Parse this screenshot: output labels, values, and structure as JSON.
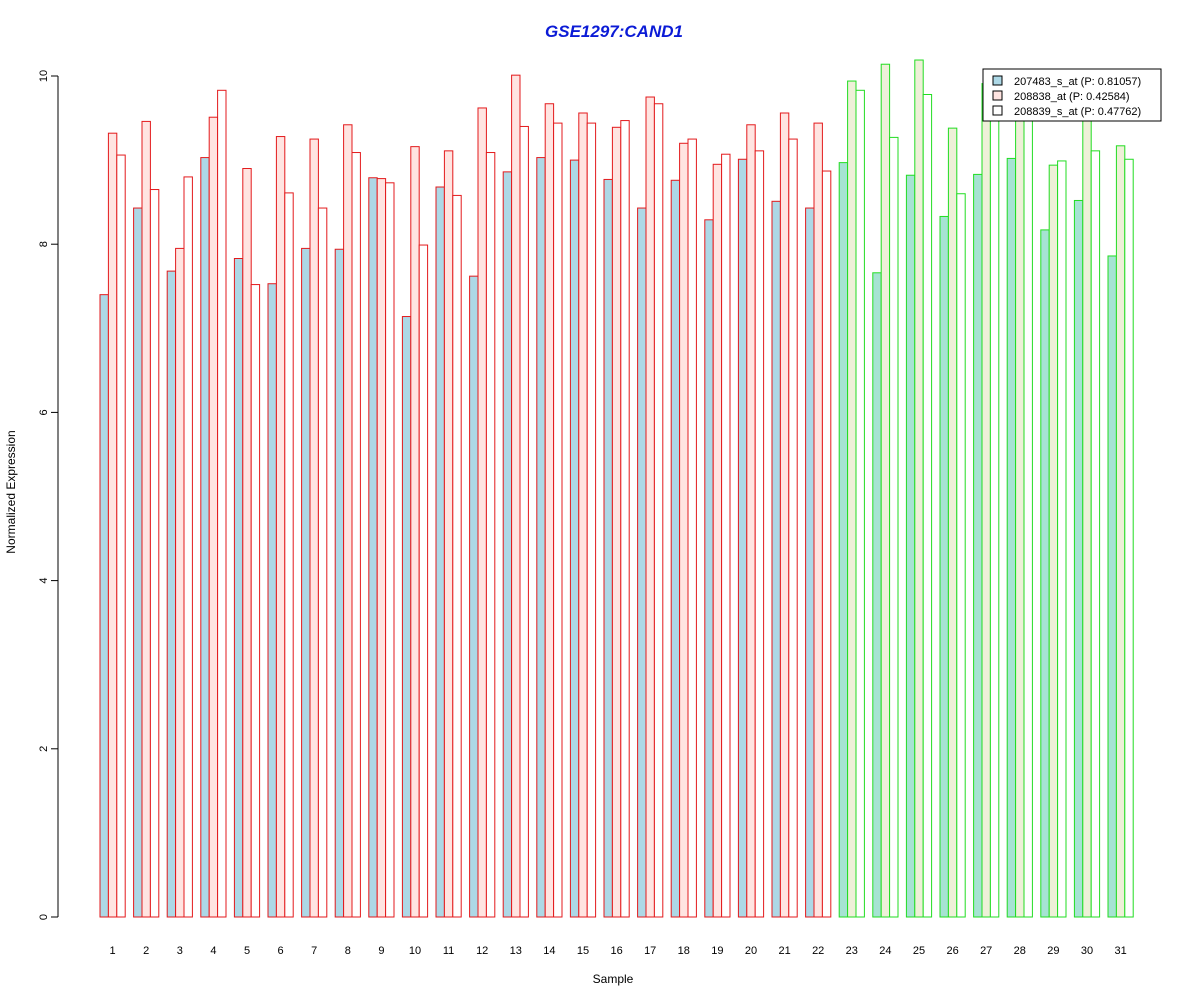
{
  "chart_data": {
    "type": "bar",
    "title": "GSE1297:CAND1",
    "xlabel": "Sample",
    "ylabel": "Normalized Expression",
    "ylim": [
      0,
      10
    ],
    "y_ticks": [
      "0",
      "2",
      "4",
      "6",
      "8",
      "10"
    ],
    "grid": false,
    "legend_position": "top-right",
    "categories": [
      "1",
      "2",
      "3",
      "4",
      "5",
      "6",
      "7",
      "8",
      "9",
      "10",
      "11",
      "12",
      "13",
      "14",
      "15",
      "16",
      "17",
      "18",
      "19",
      "20",
      "21",
      "22",
      "23",
      "24",
      "25",
      "26",
      "27",
      "28",
      "29",
      "30",
      "31"
    ],
    "groups": [
      {
        "samples": "1-22",
        "outline_color": "#e31a1c"
      },
      {
        "samples": "23-31",
        "outline_color": "#22dd22"
      }
    ],
    "series": [
      {
        "name": "207483_s_at (P: 0.81057)",
        "fill": "#add8e6",
        "fill_group2": "#a6e3d3",
        "values": [
          7.4,
          8.43,
          7.68,
          9.03,
          7.83,
          7.53,
          7.95,
          7.94,
          8.79,
          7.14,
          8.68,
          7.62,
          8.86,
          9.03,
          9.0,
          8.77,
          8.43,
          8.76,
          8.29,
          9.01,
          8.51,
          8.43,
          8.97,
          7.66,
          8.82,
          8.33,
          8.83,
          9.02,
          8.17,
          8.52,
          7.86
        ]
      },
      {
        "name": "208838_at (P: 0.42584)",
        "fill": "#ffe4e1",
        "fill_group2": "#eef0d8",
        "values": [
          9.32,
          9.46,
          7.95,
          9.51,
          8.9,
          9.28,
          9.25,
          9.42,
          8.78,
          9.16,
          9.11,
          9.62,
          10.01,
          9.67,
          9.56,
          9.39,
          9.75,
          9.2,
          8.95,
          9.42,
          9.56,
          9.44,
          9.94,
          10.14,
          10.19,
          9.38,
          9.91,
          9.62,
          8.94,
          9.62,
          9.17
        ]
      },
      {
        "name": "208839_s_at (P: 0.47762)",
        "fill": "#ffffff",
        "fill_group2": "#ffffff",
        "values": [
          9.06,
          8.65,
          8.8,
          9.83,
          7.52,
          8.61,
          8.43,
          9.09,
          8.73,
          7.99,
          8.58,
          9.09,
          9.4,
          9.44,
          9.44,
          9.47,
          9.67,
          9.25,
          9.07,
          9.11,
          9.25,
          8.87,
          9.83,
          9.27,
          9.78,
          8.6,
          9.62,
          9.56,
          8.99,
          9.11,
          9.01
        ]
      }
    ]
  },
  "colors": {
    "title": "#0b1bd6",
    "axis": "#000000",
    "legend_border": "#000000"
  }
}
